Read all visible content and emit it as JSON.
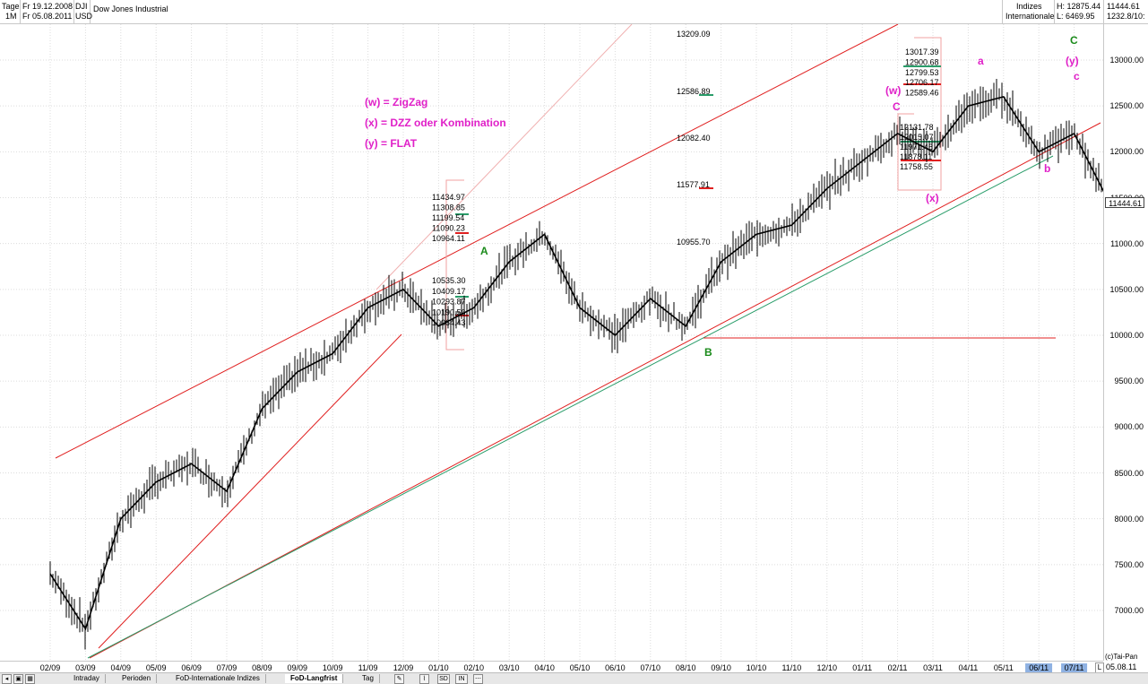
{
  "header": {
    "period": "Tage",
    "range_label": "1M",
    "from_date": "Fr 19.12.2008",
    "to_date": "Fr 05.08.2011",
    "symbol": "DJI",
    "currency": "USD",
    "instrument": "Dow Jones Industrial",
    "category1": "Indizes",
    "category2": "Internationale",
    "high": "H: 12875.44",
    "low": "L: 6469.95",
    "last": "11444.61",
    "change": "1232.8/10:"
  },
  "annotations": {
    "legend": [
      "(w) = ZigZag",
      "(x) = DZZ oder Kombination",
      "(y) = FLAT"
    ],
    "waves": {
      "A": "A",
      "B": "B",
      "C_green": "C",
      "w": "(w)",
      "x": "(x)",
      "y": "(y)",
      "C_pink": "C",
      "a": "a",
      "b": "b",
      "c": "c"
    },
    "fib_left": [
      "11434.97",
      "11308.85",
      "11199.54",
      "11090.23",
      "10964.11",
      "10535.30",
      "10409.17",
      "10293.87",
      "10190.56",
      "10064.43"
    ],
    "fib_mid": [
      "13209.09",
      "12586.89",
      "12082.40",
      "11577.91",
      "10955.70"
    ],
    "fib_right_top": [
      "13017.39",
      "12900.68",
      "12799.53",
      "12706.17",
      "12589.46"
    ],
    "fib_right_bottom": [
      "12131.78",
      "12015.07",
      "11971.46",
      "11878.11",
      "11758.55"
    ]
  },
  "chart_data": {
    "type": "line",
    "title": "Dow Jones Industrial",
    "x": [
      "02/09",
      "03/09",
      "04/09",
      "05/09",
      "06/09",
      "07/09",
      "08/09",
      "09/09",
      "10/09",
      "11/09",
      "12/09",
      "01/10",
      "02/10",
      "03/10",
      "04/10",
      "05/10",
      "06/10",
      "07/10",
      "08/10",
      "09/10",
      "10/10",
      "11/10",
      "12/10",
      "01/11",
      "02/11",
      "03/11",
      "04/11",
      "05/11",
      "06/11",
      "07/11",
      "08/11"
    ],
    "series": [
      {
        "values": [
          7400,
          6800,
          8000,
          8400,
          8600,
          8300,
          9200,
          9600,
          9800,
          10300,
          10500,
          10100,
          10300,
          10800,
          11100,
          10300,
          10000,
          10400,
          10100,
          10800,
          11100,
          11200,
          11600,
          11900,
          12200,
          12000,
          12500,
          12600,
          12000,
          12200,
          11444.61
        ]
      }
    ],
    "ylim": [
      6400,
      13200
    ],
    "yticks": [
      "13000.00",
      "12500.00",
      "12000.00",
      "11500.00",
      "11000.00",
      "10500.00",
      "10000.00",
      "9500.00",
      "9000.00",
      "8500.00",
      "8000.00",
      "7500.00",
      "7000.00"
    ],
    "highlight_months": [
      "06/11",
      "07/11"
    ],
    "last_date": "05.08.11",
    "last_value_label": "11444.61",
    "grid": true
  },
  "tabs": [
    "Intraday",
    "Perioden",
    "FoD-Internationale Indizes",
    "FoD-Langfrist",
    "Tag"
  ],
  "toolbar_glyphs": [
    "SD",
    "IN"
  ],
  "copyright": "(c)Tai-Pan",
  "axis_corner": "L",
  "colors": {
    "price": "#000000",
    "channel": "#e02020",
    "trend": "#2a9d6a",
    "pink": "#e020c8",
    "green_label": "#1a8a1a"
  }
}
